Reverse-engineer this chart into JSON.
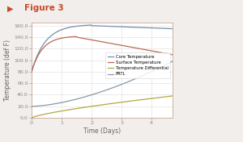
{
  "title": "Figure 3",
  "xlabel": "Time (Days)",
  "ylabel": "Temperature (def F)",
  "xlim": [
    0,
    4.7
  ],
  "ylim": [
    0,
    165
  ],
  "yticks": [
    0,
    20,
    40,
    60,
    80,
    100,
    120,
    140,
    160
  ],
  "ytick_labels": [
    "0.0",
    "20.0",
    "40.0",
    "60.0",
    "80.0",
    "100.0",
    "120.0",
    "140.0",
    "160.0"
  ],
  "xticks": [
    0,
    1,
    2,
    3,
    4
  ],
  "background_color": "#f2eeec",
  "plot_bg_color": "#ffffff",
  "border_color": "#c8a898",
  "core_color": "#7090a8",
  "surface_color": "#b86858",
  "diff_color": "#b0a840",
  "prtl_color": "#8898a8",
  "legend_labels": [
    "Core Temperature",
    "Surface Temperature",
    "Temperature Differential",
    "PRTL"
  ],
  "title_color": "#c84828",
  "title_fontsize": 7.5,
  "axis_label_fontsize": 5.5,
  "tick_fontsize": 4.5,
  "legend_fontsize": 3.8
}
